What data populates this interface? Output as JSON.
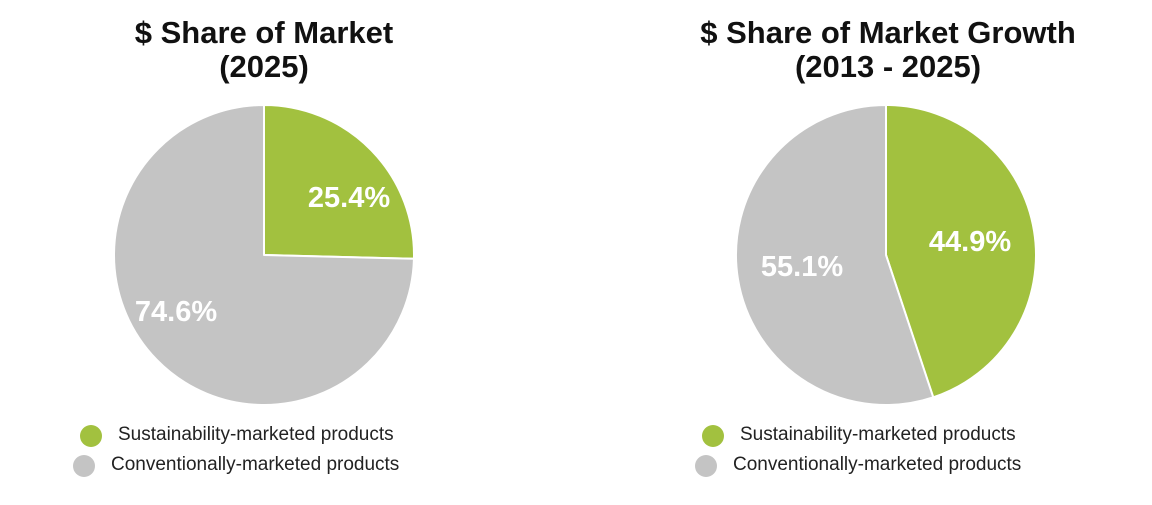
{
  "chart_data": [
    {
      "type": "pie",
      "title": "$ Share of Market",
      "subtitle": "(2025)",
      "categories": [
        "Sustainability-marketed products",
        "Conventionally-marketed products"
      ],
      "values": [
        25.4,
        74.6
      ],
      "labels": [
        "25.4%",
        "74.6%"
      ],
      "colors": [
        "#a2c13f",
        "#c4c4c4"
      ],
      "legend": "bottom"
    },
    {
      "type": "pie",
      "title": "$ Share of Market Growth",
      "subtitle": "(2013 - 2025)",
      "categories": [
        "Sustainability-marketed products",
        "Conventionally-marketed products"
      ],
      "values": [
        44.9,
        55.1
      ],
      "labels": [
        "44.9%",
        "55.1%"
      ],
      "colors": [
        "#a2c13f",
        "#c4c4c4"
      ],
      "legend": "bottom"
    }
  ]
}
